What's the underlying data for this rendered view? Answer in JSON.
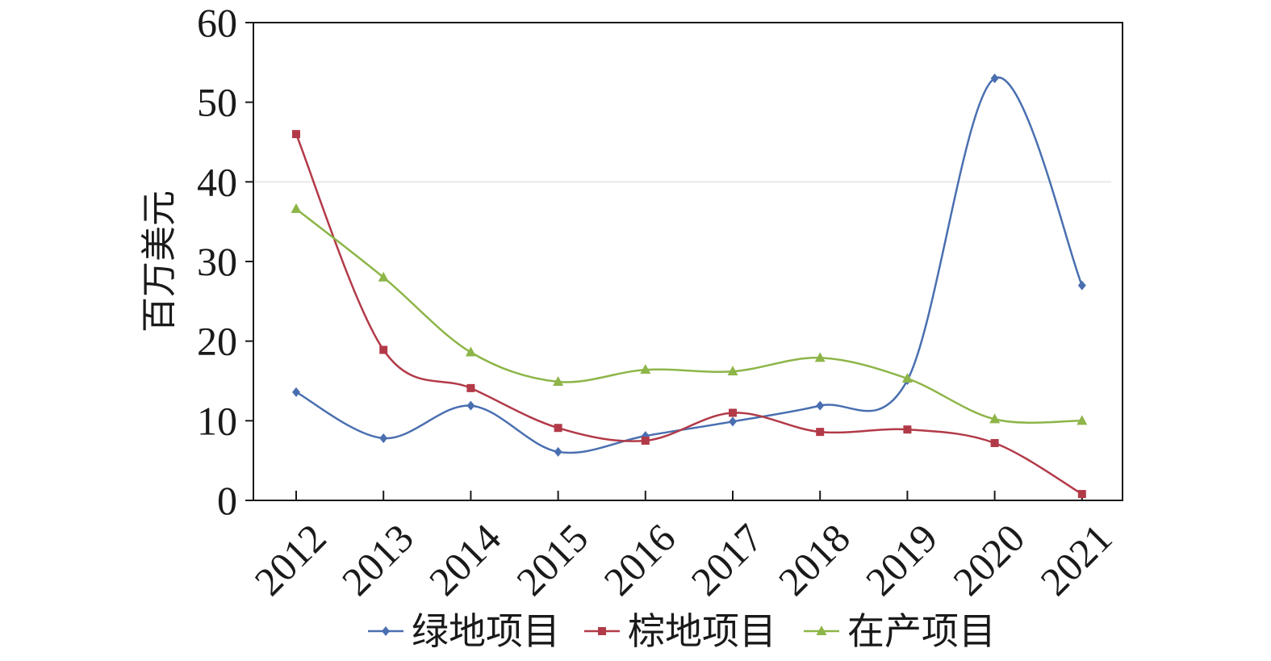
{
  "chart_data": {
    "type": "line",
    "title": "",
    "xlabel": "",
    "ylabel": "百万美元",
    "categories": [
      "2012",
      "2013",
      "2014",
      "2015",
      "2016",
      "2017",
      "2018",
      "2019",
      "2020",
      "2021"
    ],
    "ylim": [
      0,
      60
    ],
    "yticks": [
      "0",
      "10",
      "20",
      "30",
      "40",
      "50",
      "60"
    ],
    "grid": false,
    "smooth": true,
    "legend_position": "bottom",
    "series": [
      {
        "name": "绿地项目",
        "color": "#4a6fb0",
        "marker": "diamond",
        "values": [
          13.6,
          7.8,
          11.9,
          6.1,
          8.1,
          9.9,
          11.9,
          15.1,
          53.0,
          27.0
        ]
      },
      {
        "name": "棕地项目",
        "color": "#b23a48",
        "marker": "square",
        "values": [
          46.0,
          18.9,
          14.1,
          9.1,
          7.5,
          11.0,
          8.6,
          8.9,
          7.2,
          0.8
        ]
      },
      {
        "name": "在产项目",
        "color": "#8db548",
        "marker": "triangle",
        "values": [
          36.6,
          28.0,
          18.6,
          14.9,
          16.4,
          16.2,
          17.9,
          15.3,
          10.2,
          10.0
        ]
      }
    ]
  }
}
